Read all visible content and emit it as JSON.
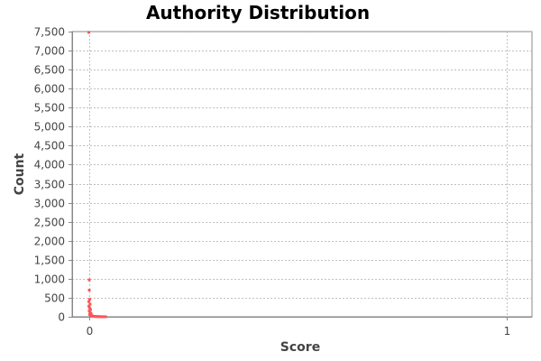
{
  "chart_data": {
    "type": "scatter",
    "title": "Authority Distribution",
    "xlabel": "Score",
    "ylabel": "Count",
    "xlim": [
      -0.04,
      1.06
    ],
    "ylim": [
      0,
      7500
    ],
    "xticks": [
      0,
      1
    ],
    "xtick_labels": [
      "0",
      "1"
    ],
    "yticks": [
      0,
      500,
      1000,
      1500,
      2000,
      2500,
      3000,
      3500,
      4000,
      4500,
      5000,
      5500,
      6000,
      6500,
      7000,
      7500
    ],
    "ytick_labels": [
      "0",
      "500",
      "1,000",
      "1,500",
      "2,000",
      "2,500",
      "3,000",
      "3,500",
      "4,000",
      "4,500",
      "5,000",
      "5,500",
      "6,000",
      "6,500",
      "7,000",
      "7,500"
    ],
    "grid": true,
    "legend": "none",
    "series": [
      {
        "color": "#ff5555",
        "points": [
          {
            "x": 0.0,
            "y": 7480
          },
          {
            "x": 0.001,
            "y": 970
          },
          {
            "x": 0.001,
            "y": 700
          },
          {
            "x": 0.002,
            "y": 460
          },
          {
            "x": 0.0,
            "y": 400
          },
          {
            "x": 0.003,
            "y": 330
          },
          {
            "x": 0.0,
            "y": 280
          },
          {
            "x": 0.002,
            "y": 230
          },
          {
            "x": 0.004,
            "y": 190
          },
          {
            "x": 0.001,
            "y": 150
          },
          {
            "x": 0.003,
            "y": 110
          },
          {
            "x": 0.005,
            "y": 85
          },
          {
            "x": 0.002,
            "y": 60
          },
          {
            "x": 0.006,
            "y": 45
          },
          {
            "x": 0.004,
            "y": 30
          },
          {
            "x": 0.008,
            "y": 22
          },
          {
            "x": 0.01,
            "y": 15
          },
          {
            "x": 0.012,
            "y": 10
          },
          {
            "x": 0.015,
            "y": 8
          },
          {
            "x": 0.018,
            "y": 6
          },
          {
            "x": 0.021,
            "y": 5
          },
          {
            "x": 0.024,
            "y": 4
          },
          {
            "x": 0.027,
            "y": 3
          },
          {
            "x": 0.03,
            "y": 2
          },
          {
            "x": 0.033,
            "y": 2
          },
          {
            "x": 0.036,
            "y": 1
          },
          {
            "x": 0.04,
            "y": 1
          }
        ]
      }
    ],
    "colors": {
      "plot_background": "#ffffff",
      "plot_border": "#888888",
      "grid": "#c0c0c0",
      "axis_line": "#888888"
    }
  }
}
